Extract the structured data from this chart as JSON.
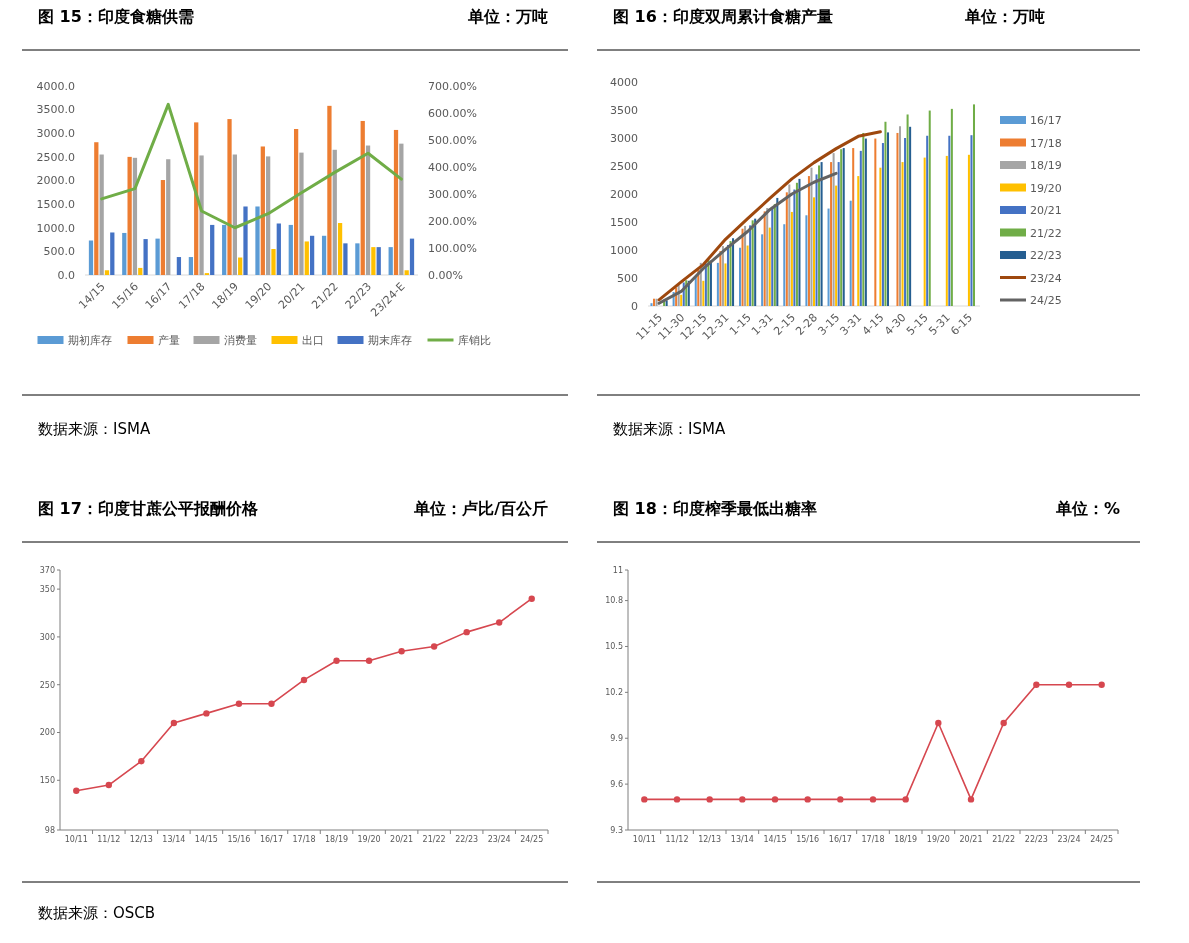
{
  "chart_data": [
    {
      "type": "bar",
      "title": "图 15：印度食糖供需",
      "subtitle": "单位：万吨",
      "annotations": [
        "数据来源：ISMA"
      ],
      "categories": [
        "14/15",
        "15/16",
        "16/17",
        "17/18",
        "18/19",
        "19/20",
        "20/21",
        "21/22",
        "22/23",
        "23/24-E"
      ],
      "series": [
        {
          "name": "期初库存",
          "color": "#5b9bd5",
          "values": [
            730,
            890,
            770,
            380,
            1060,
            1450,
            1060,
            830,
            670,
            590
          ]
        },
        {
          "name": "产量",
          "color": "#ed7d31",
          "values": [
            2810,
            2500,
            2010,
            3230,
            3300,
            2720,
            3090,
            3580,
            3260,
            3070
          ]
        },
        {
          "name": "消费量",
          "color": "#a5a5a5",
          "values": [
            2550,
            2480,
            2450,
            2530,
            2550,
            2510,
            2590,
            2650,
            2740,
            2780
          ]
        },
        {
          "name": "出口",
          "color": "#ffc000",
          "values": [
            100,
            150,
            null,
            40,
            370,
            550,
            710,
            1100,
            590,
            100
          ]
        },
        {
          "name": "期末库存",
          "color": "#4472c4",
          "values": [
            900,
            760,
            380,
            1060,
            1450,
            1090,
            830,
            670,
            590,
            770
          ]
        },
        {
          "name": "库销比",
          "color": "#70ad47",
          "type": "line",
          "axis": "y2",
          "values": [
            282,
            320,
            632,
            237,
            175,
            227,
            305,
            380,
            451,
            355
          ]
        }
      ],
      "ylim": [
        0,
        4000
      ],
      "yticks": [
        {
          "value": 0,
          "label": "0.0"
        },
        {
          "value": 500,
          "label": "500.0"
        },
        {
          "value": 1000,
          "label": "1000.0"
        },
        {
          "value": 1500,
          "label": "1500.0"
        },
        {
          "value": 2000,
          "label": "2000.0"
        },
        {
          "value": 2500,
          "label": "2500.0"
        },
        {
          "value": 3000,
          "label": "3000.0"
        },
        {
          "value": 3500,
          "label": "3500.0"
        },
        {
          "value": 4000,
          "label": "4000.0"
        }
      ],
      "y2lim": [
        0,
        700
      ],
      "y2ticks": [
        {
          "value": 0,
          "label": "0.00%"
        },
        {
          "value": 100,
          "label": "100.00%"
        },
        {
          "value": 200,
          "label": "200.00%"
        },
        {
          "value": 300,
          "label": "300.00%"
        },
        {
          "value": 400,
          "label": "400.00%"
        },
        {
          "value": 500,
          "label": "500.00%"
        },
        {
          "value": 600,
          "label": "600.00%"
        },
        {
          "value": 700,
          "label": "700.00%"
        }
      ],
      "legend": "bottom"
    },
    {
      "type": "bar",
      "title": "图 16：印度双周累计食糖产量",
      "subtitle": "单位：万吨",
      "annotations": [
        "数据来源：ISMA"
      ],
      "categories": [
        "11-15",
        "11-30",
        "12-15",
        "12-31",
        "1-15",
        "1-31",
        "2-15",
        "2-28",
        "3-15",
        "3-31",
        "4-15",
        "4-30",
        "5-15",
        "5-31",
        "6-15"
      ],
      "series": [
        {
          "name": "16/17",
          "color": "#5b9bd5",
          "values": [
            50,
            250,
            530,
            770,
            1040,
            1280,
            1460,
            1620,
            1740,
            1880,
            null,
            null,
            null,
            null,
            null
          ]
        },
        {
          "name": "17/18",
          "color": "#ed7d31",
          "values": [
            130,
            330,
            680,
            980,
            1380,
            1690,
            2030,
            2320,
            2570,
            2820,
            2990,
            3090,
            null,
            null,
            null
          ]
        },
        {
          "name": "18/19",
          "color": "#a5a5a5",
          "values": [
            130,
            380,
            770,
            1070,
            1430,
            1750,
            2170,
            2470,
            2730,
            null,
            null,
            3210,
            null,
            null,
            null
          ]
        },
        {
          "name": "19/20",
          "color": "#ffc000",
          "values": [
            null,
            200,
            450,
            760,
            1080,
            1400,
            1680,
            1940,
            2150,
            2320,
            2470,
            2570,
            2650,
            2680,
            2700
          ]
        },
        {
          "name": "20/21",
          "color": "#4472c4",
          "values": [
            null,
            420,
            760,
            1090,
            1440,
            1770,
            2080,
            2350,
            2570,
            2770,
            2910,
            3000,
            3040,
            3040,
            3050
          ]
        },
        {
          "name": "21/22",
          "color": "#70ad47",
          "values": [
            110,
            460,
            830,
            1160,
            1530,
            1820,
            2200,
            2510,
            2800,
            3090,
            3290,
            3420,
            3490,
            3520,
            3600
          ]
        },
        {
          "name": "22/23",
          "color": "#255e91",
          "values": [
            100,
            450,
            810,
            1210,
            1560,
            1930,
            2270,
            2570,
            2820,
            2990,
            3100,
            3200,
            null,
            null,
            null
          ]
        },
        {
          "name": "23/24",
          "color": "#9e480e",
          "type": "line",
          "values": [
            110,
            430,
            740,
            1190,
            1560,
            1920,
            2270,
            2560,
            2810,
            3030,
            3110,
            null,
            null,
            null,
            null
          ]
        },
        {
          "name": "24/25",
          "color": "#636363",
          "type": "line",
          "values": [
            50,
            260,
            670,
            1010,
            1330,
            1720,
            2000,
            2210,
            2370,
            null,
            null,
            null,
            null,
            null,
            null
          ]
        }
      ],
      "ylim": [
        0,
        4000
      ],
      "yticks": [
        0,
        500,
        1000,
        1500,
        2000,
        2500,
        3000,
        3500,
        4000
      ],
      "legend": "right"
    },
    {
      "type": "line",
      "title": "图 17：印度甘蔗公平报酬价格",
      "subtitle": "单位：卢比/百公斤",
      "annotations": [
        "数据来源：OSCB"
      ],
      "categories": [
        "10/11",
        "11/12",
        "12/13",
        "13/14",
        "14/15",
        "15/16",
        "16/17",
        "17/18",
        "18/19",
        "19/20",
        "20/21",
        "21/22",
        "22/23",
        "23/24",
        "24/25"
      ],
      "series": [
        {
          "color": "#d6474f",
          "values": [
            139,
            145,
            170,
            210,
            220,
            230,
            230,
            255,
            275,
            275,
            285,
            290,
            305,
            315,
            340
          ]
        }
      ],
      "ylim": [
        98,
        370
      ],
      "yticks": [
        98,
        150,
        200,
        250,
        300,
        350,
        370
      ],
      "marker": "circle"
    },
    {
      "type": "line",
      "title": "图 18：印度榨季最低出糖率",
      "subtitle": "单位：%",
      "categories": [
        "10/11",
        "11/12",
        "12/13",
        "13/14",
        "14/15",
        "15/16",
        "16/17",
        "17/18",
        "18/19",
        "19/20",
        "20/21",
        "21/22",
        "22/23",
        "23/24",
        "24/25"
      ],
      "series": [
        {
          "color": "#d6474f",
          "values": [
            9.5,
            9.5,
            9.5,
            9.5,
            9.5,
            9.5,
            9.5,
            9.5,
            9.5,
            10,
            9.5,
            10,
            10.25,
            10.25,
            10.25
          ]
        }
      ],
      "ylim": [
        9.3,
        11
      ],
      "yticks": [
        9.3,
        9.6,
        9.9,
        10.2,
        10.5,
        10.8,
        11
      ],
      "marker": "circle"
    }
  ]
}
